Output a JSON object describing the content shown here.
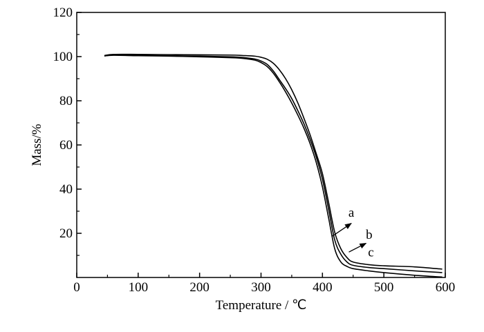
{
  "chart_data": {
    "type": "line",
    "title": "",
    "xlabel": "Temperature / ℃",
    "ylabel": "Mass/%",
    "xlim": [
      0,
      600
    ],
    "ylim": [
      0,
      120
    ],
    "x_ticks": [
      0,
      100,
      200,
      300,
      400,
      500,
      600
    ],
    "y_ticks": [
      20,
      40,
      60,
      80,
      100,
      120
    ],
    "grid": false,
    "legend": "none",
    "line_color": "#000000",
    "series": [
      {
        "name": "a",
        "x": [
          45,
          60,
          100,
          150,
          200,
          250,
          270,
          290,
          300,
          310,
          320,
          330,
          340,
          350,
          360,
          370,
          380,
          390,
          400,
          410,
          420,
          430,
          440,
          450,
          475,
          500,
          550,
          595
        ],
        "y": [
          100.3,
          100.6,
          100.4,
          100.2,
          99.9,
          99.5,
          99.2,
          98.4,
          97.3,
          95.5,
          92.5,
          88.5,
          84.0,
          79.0,
          73.5,
          67.5,
          60.5,
          52.0,
          41.0,
          27.0,
          13.0,
          7.0,
          5.0,
          4.0,
          3.0,
          2.2,
          1.0,
          0.2
        ]
      },
      {
        "name": "b",
        "x": [
          45,
          60,
          100,
          150,
          200,
          250,
          270,
          290,
          300,
          310,
          320,
          330,
          340,
          350,
          360,
          370,
          380,
          390,
          400,
          410,
          420,
          430,
          440,
          450,
          475,
          500,
          550,
          595
        ],
        "y": [
          100.3,
          100.7,
          100.6,
          100.4,
          100.2,
          99.9,
          99.6,
          98.9,
          98.0,
          96.5,
          93.5,
          89.5,
          85.5,
          81.0,
          75.5,
          69.5,
          62.5,
          54.5,
          44.5,
          31.0,
          17.0,
          10.5,
          7.0,
          5.5,
          4.5,
          4.0,
          3.0,
          2.2
        ]
      },
      {
        "name": "c",
        "x": [
          45,
          60,
          100,
          150,
          200,
          250,
          270,
          290,
          300,
          310,
          320,
          330,
          340,
          350,
          360,
          370,
          380,
          390,
          400,
          410,
          420,
          430,
          440,
          450,
          475,
          500,
          550,
          595
        ],
        "y": [
          100.5,
          101.0,
          101.0,
          100.9,
          100.8,
          100.7,
          100.5,
          100.2,
          99.7,
          98.8,
          97.0,
          94.0,
          90.0,
          85.0,
          79.0,
          72.0,
          64.5,
          56.0,
          47.0,
          34.0,
          20.5,
          13.0,
          9.0,
          7.0,
          5.8,
          5.3,
          4.8,
          3.8
        ]
      }
    ],
    "annotations": [
      {
        "text": "a",
        "series": "a",
        "label_x": 447,
        "label_y": 27.5,
        "arrow_from": [
          415,
          18.5
        ],
        "arrow_to": [
          447,
          24.5
        ]
      },
      {
        "text": "b",
        "series": "b",
        "label_x": 476,
        "label_y": 17.5,
        "arrow_from": [
          443,
          11.5
        ],
        "arrow_to": [
          471,
          15.5
        ]
      },
      {
        "text": "c",
        "series": "c",
        "label_x": 479,
        "label_y": 9.5,
        "arrow_from": null,
        "arrow_to": null
      }
    ]
  }
}
